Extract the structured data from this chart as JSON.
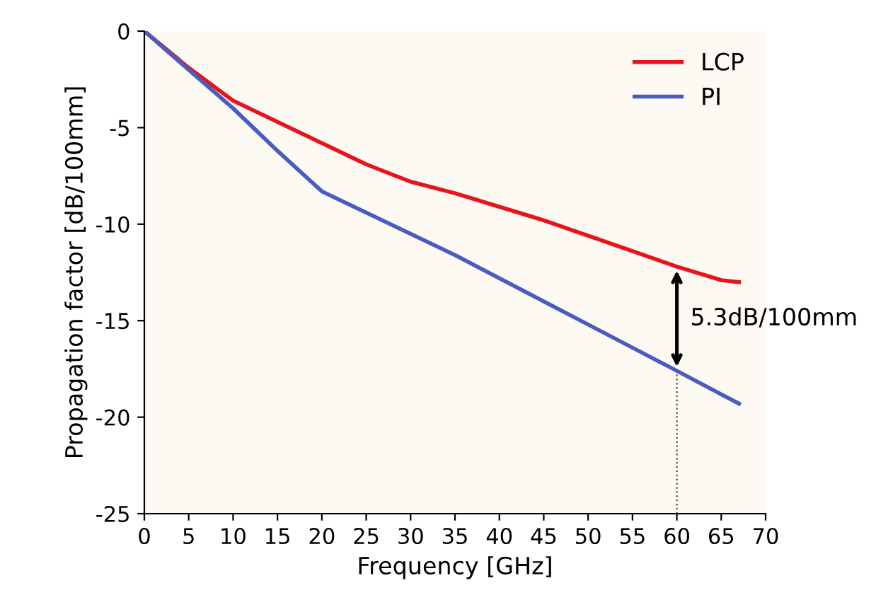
{
  "chart_data": {
    "type": "line",
    "xlabel": "Frequency [GHz]",
    "ylabel": "Propagation factor [dB/100mm]",
    "xlim": [
      0,
      70
    ],
    "xticks": [
      0,
      5,
      10,
      15,
      20,
      25,
      30,
      35,
      40,
      45,
      50,
      55,
      60,
      65,
      70
    ],
    "ylim": [
      -25,
      0
    ],
    "yticks": [
      0,
      -5,
      -10,
      -15,
      -20,
      -25
    ],
    "grid": false,
    "legend": "top right",
    "marker": "none",
    "line_style": "solid",
    "series": [
      {
        "name": "LCP",
        "color": "#e8141c",
        "x": [
          0,
          5,
          10,
          15,
          20,
          25,
          30,
          35,
          40,
          45,
          50,
          55,
          60,
          65,
          67
        ],
        "values": [
          0,
          -1.9,
          -3.6,
          -4.7,
          -5.8,
          -6.9,
          -7.8,
          -8.4,
          -9.1,
          -9.8,
          -10.6,
          -11.4,
          -12.2,
          -12.9,
          -13.0
        ]
      },
      {
        "name": "PI",
        "color": "#4a5cc0",
        "x": [
          0,
          5,
          10,
          15,
          20,
          25,
          30,
          35,
          40,
          45,
          50,
          55,
          60,
          67
        ],
        "values": [
          0,
          -2.0,
          -4.0,
          -6.2,
          -8.3,
          -9.4,
          -10.5,
          -11.6,
          -12.8,
          -14.0,
          -15.2,
          -16.4,
          -17.6,
          -19.3
        ]
      }
    ],
    "ref_lines": [
      {
        "axis": "x",
        "value": 60,
        "line_style": "dotted",
        "color": "#444444"
      }
    ],
    "annotations": [
      "5.3dB/100mm"
    ]
  }
}
